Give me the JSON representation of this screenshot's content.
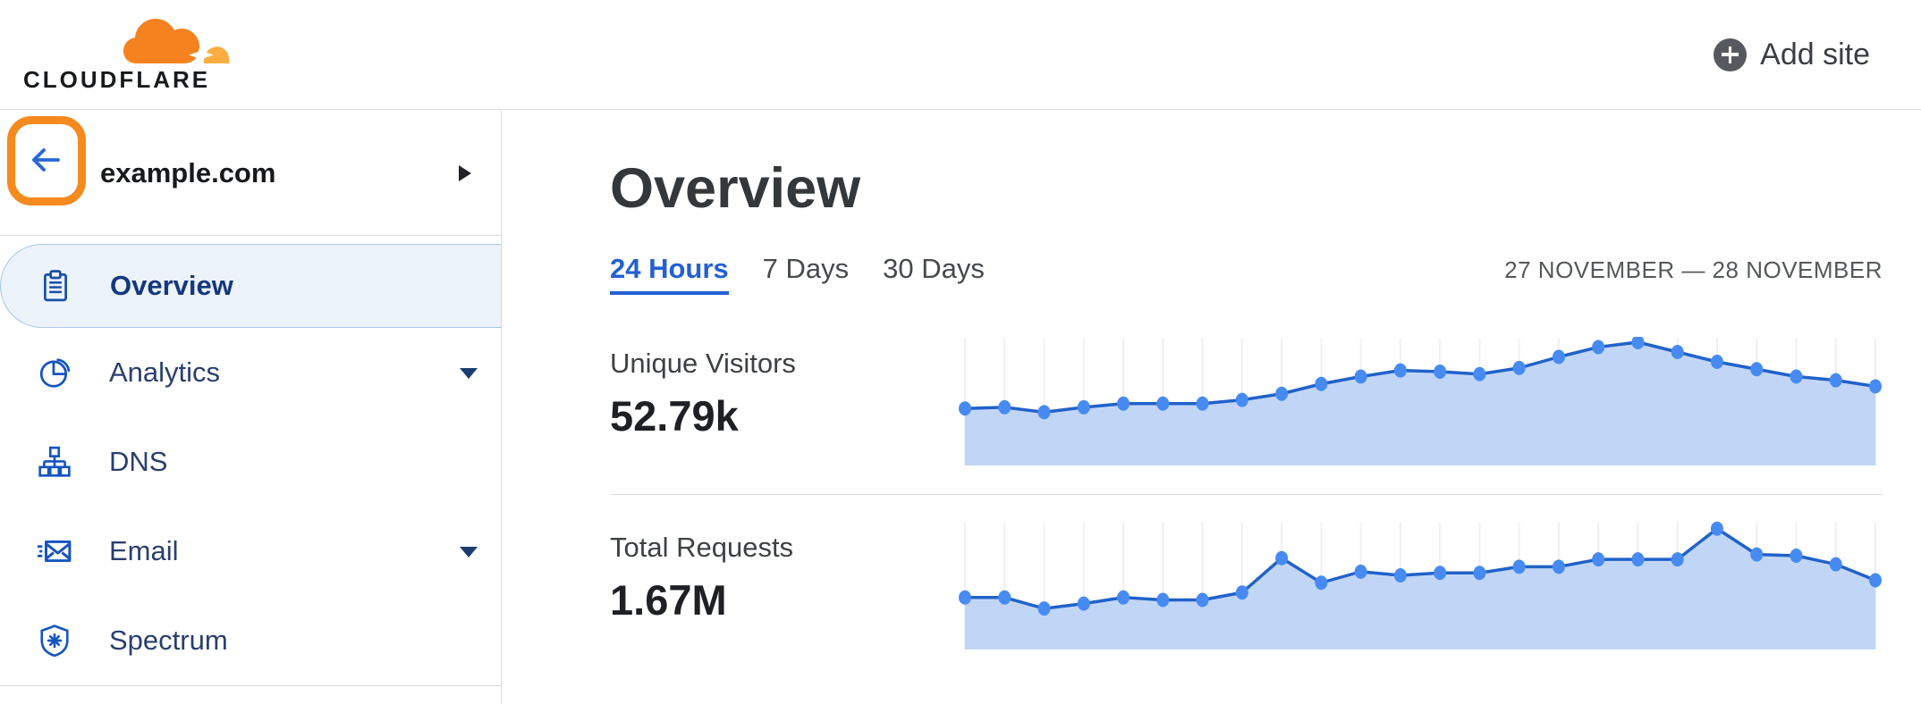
{
  "header": {
    "logo_text": "CLOUDFLARE",
    "add_site_label": "Add site"
  },
  "sidebar": {
    "domain": "example.com",
    "items": [
      {
        "label": "Overview",
        "icon": "clipboard-icon",
        "selected": true,
        "expandable": false
      },
      {
        "label": "Analytics",
        "icon": "pie-chart-icon",
        "selected": false,
        "expandable": true
      },
      {
        "label": "DNS",
        "icon": "sitemap-icon",
        "selected": false,
        "expandable": false
      },
      {
        "label": "Email",
        "icon": "envelope-icon",
        "selected": false,
        "expandable": true
      },
      {
        "label": "Spectrum",
        "icon": "shield-icon",
        "selected": false,
        "expandable": false
      }
    ]
  },
  "main": {
    "title": "Overview",
    "tabs": [
      {
        "label": "24 Hours",
        "active": true
      },
      {
        "label": "7 Days",
        "active": false
      },
      {
        "label": "30 Days",
        "active": false
      }
    ],
    "date_range": "27 NOVEMBER — 28 NOVEMBER",
    "stats": [
      {
        "label": "Unique Visitors",
        "value": "52.79k"
      },
      {
        "label": "Total Requests",
        "value": "1.67M"
      }
    ]
  },
  "colors": {
    "brand_orange": "#F6821F",
    "brand_orange_light": "#FBAD41",
    "annotation_orange": "#F68A1E",
    "accent_blue": "#2260D3",
    "nav_icon_blue": "#1455C0",
    "selected_bg": "#EDF3FB",
    "selected_border": "#A8C6EE",
    "chart_line": "#2162C9",
    "chart_dot": "#478BF2",
    "chart_fill": "#C1D6F7",
    "chart_grid": "#EEF0F4"
  },
  "chart_data": [
    {
      "type": "area",
      "title": "Unique Visitors",
      "display_value": "52.79k",
      "period": "24 Hours",
      "x_range_label": "27 NOVEMBER — 28 NOVEMBER",
      "points": 24,
      "values_relative_0_100": [
        46,
        47,
        43,
        47,
        50,
        50,
        50,
        53,
        58,
        66,
        72,
        77,
        76,
        74,
        79,
        88,
        96,
        100,
        92,
        84,
        78,
        72,
        69,
        64
      ],
      "xlabel": "",
      "ylabel": "",
      "grid": "vertical-only",
      "legend": "none"
    },
    {
      "type": "area",
      "title": "Total Requests",
      "display_value": "1.67M",
      "period": "24 Hours",
      "x_range_label": "27 NOVEMBER — 28 NOVEMBER",
      "points": 24,
      "values_relative_0_100": [
        42,
        42,
        33,
        37,
        42,
        40,
        40,
        46,
        74,
        54,
        63,
        60,
        62,
        62,
        67,
        67,
        73,
        73,
        73,
        98,
        77,
        76,
        69,
        56
      ],
      "xlabel": "",
      "ylabel": "",
      "grid": "vertical-only",
      "legend": "none"
    }
  ]
}
